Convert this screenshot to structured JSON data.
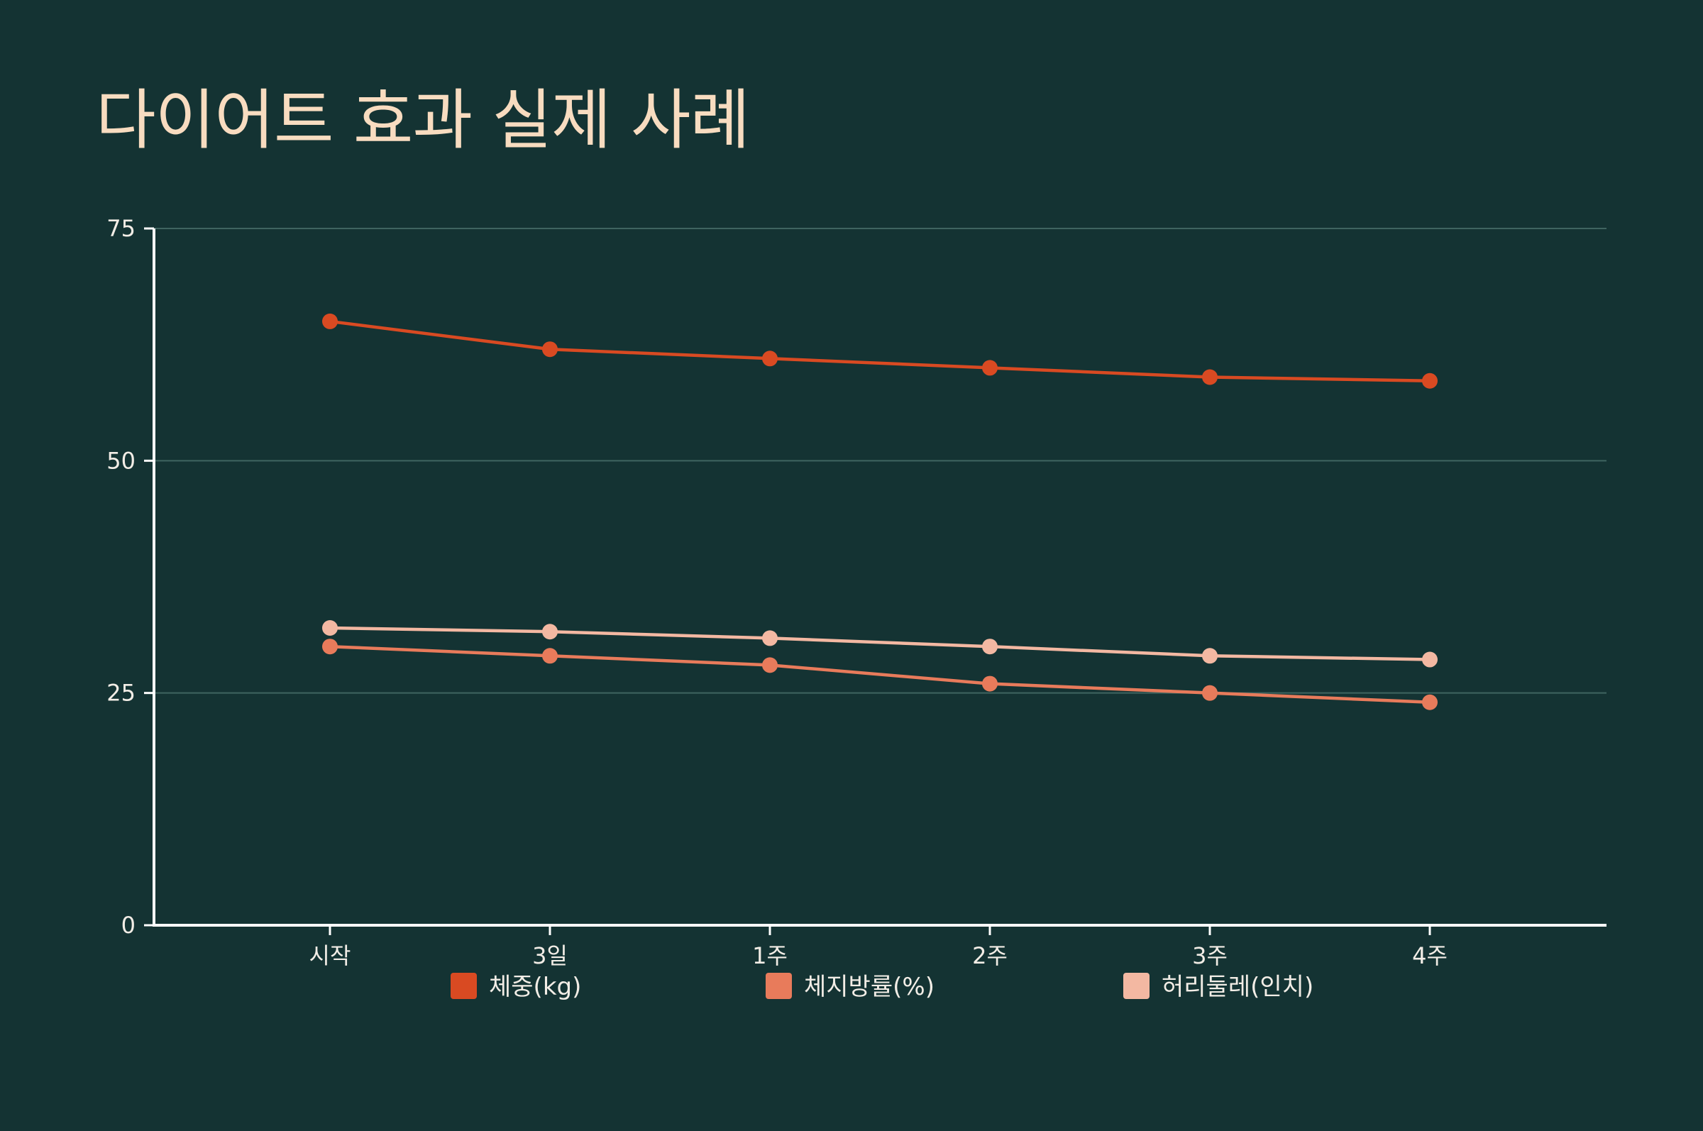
{
  "title": "다이어트 효과 실제 사례",
  "chart_data": {
    "type": "line",
    "title": "다이어트 효과 실제 사례",
    "categories": [
      "시작",
      "3일",
      "1주",
      "2주",
      "3주",
      "4주"
    ],
    "ylim": [
      0,
      75
    ],
    "yticks": [
      0,
      25,
      50,
      75
    ],
    "grid": true,
    "legend_position": "bottom",
    "series": [
      {
        "name": "체중(kg)",
        "values": [
          65,
          62,
          61,
          60,
          59,
          58.6
        ],
        "color": "#d94a22"
      },
      {
        "name": "체지방률(%)",
        "values": [
          30,
          29,
          28,
          26,
          25,
          24
        ],
        "color": "#e87b5b"
      },
      {
        "name": "허리둘레(인치)",
        "values": [
          32,
          31.6,
          30.9,
          30,
          29,
          28.6
        ],
        "color": "#f3b8a2"
      }
    ]
  },
  "colors": {
    "background": "#143333",
    "title": "#f8dcc0",
    "axis": "#ffffff",
    "grid": "#3f6460",
    "text": "#f2ede6"
  }
}
